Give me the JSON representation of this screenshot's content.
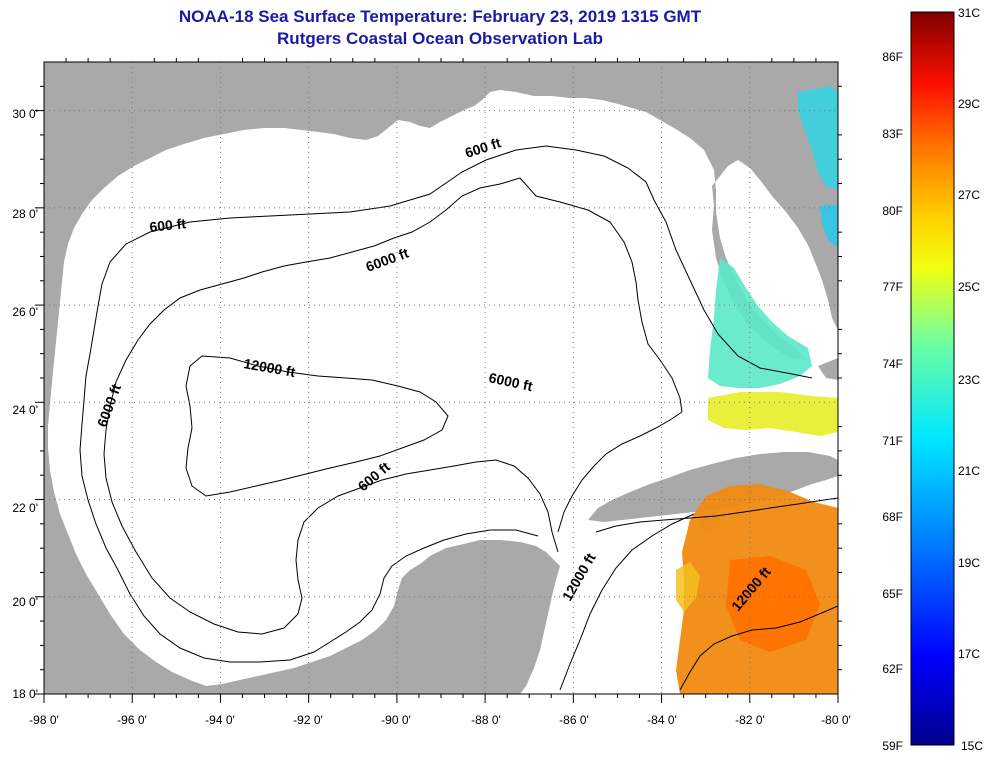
{
  "title": {
    "line1": "NOAA-18 Sea Surface Temperature:  February 23, 2019 1315 GMT",
    "line2": "Rutgers Coastal Ocean Observation Lab"
  },
  "map": {
    "x_ticks": [
      "-98 0'",
      "-96 0'",
      "-94 0'",
      "-92 0'",
      "-90 0'",
      "-88 0'",
      "-86 0'",
      "-84 0'",
      "-82 0'",
      "-80 0'"
    ],
    "y_ticks": [
      "30 0'",
      "28 0'",
      "26 0'",
      "24 0'",
      "22 0'",
      "20 0'",
      "18 0'"
    ],
    "lon_range": [
      -98,
      -80
    ],
    "lat_range": [
      18,
      31
    ],
    "contour_labels": [
      "600 ft",
      "6000 ft",
      "12000 ft",
      "6000 ft",
      "6000 ft",
      "600 ft",
      "600 ft",
      "12000 ft",
      "12000 ft"
    ]
  },
  "colorbar": {
    "fahrenheit_labels": [
      "86F",
      "83F",
      "80F",
      "77F",
      "74F",
      "71F",
      "68F",
      "65F",
      "62F",
      "59F"
    ],
    "celsius_labels": [
      "31C",
      "29C",
      "27C",
      "25C",
      "23C",
      "21C",
      "19C",
      "17C",
      "15C"
    ],
    "range_c": [
      15,
      31
    ]
  },
  "colors": {
    "title": "#1a1aa6",
    "land": "#a9a9a9",
    "ocean_nodata": "#ffffff"
  }
}
